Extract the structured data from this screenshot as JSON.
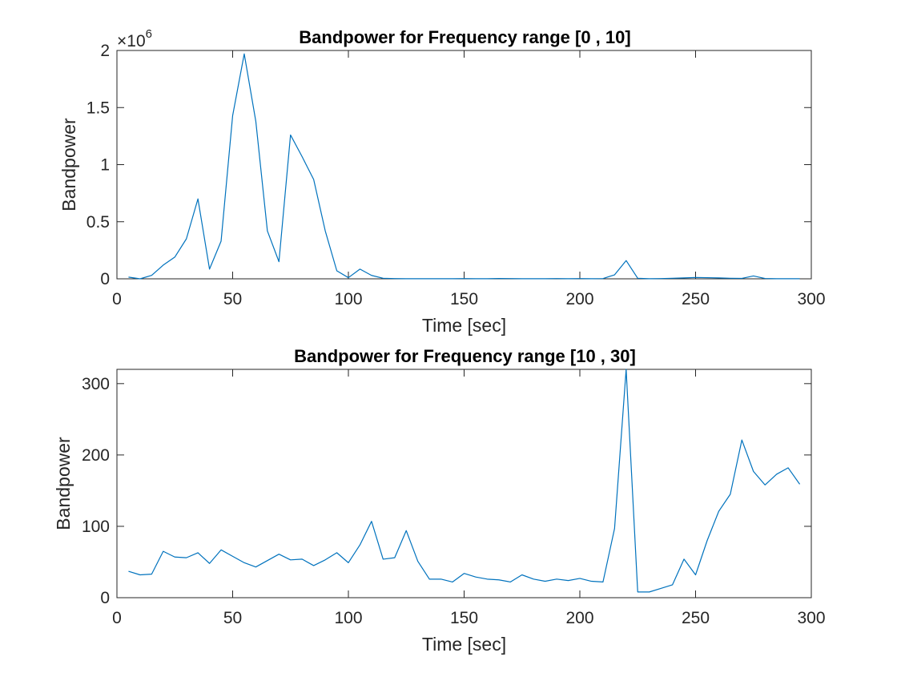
{
  "figure": {
    "background": "#ffffff",
    "line_color": "#0072BD",
    "axis_color": "#262626"
  },
  "chart_data": [
    {
      "type": "line",
      "title": "Bandpower for Frequency range [0 , 10]",
      "xlabel": "Time [sec]",
      "ylabel": "Bandpower",
      "exponent_label": "×10",
      "exponent_power": "6",
      "xlim": [
        0,
        300
      ],
      "ylim": [
        0,
        2000000
      ],
      "xticks": [
        0,
        50,
        100,
        150,
        200,
        250,
        300
      ],
      "xtick_labels": [
        "0",
        "50",
        "100",
        "150",
        "200",
        "250",
        "300"
      ],
      "yticks": [
        0,
        500000,
        1000000,
        1500000,
        2000000
      ],
      "ytick_labels": [
        "0",
        "0.5",
        "1",
        "1.5",
        "2"
      ],
      "grid": false,
      "x": [
        5,
        10,
        15,
        20,
        25,
        30,
        35,
        40,
        45,
        50,
        55,
        60,
        65,
        70,
        75,
        80,
        85,
        90,
        95,
        100,
        105,
        110,
        115,
        120,
        125,
        130,
        135,
        140,
        145,
        150,
        155,
        160,
        165,
        170,
        175,
        180,
        185,
        190,
        195,
        200,
        205,
        210,
        215,
        220,
        225,
        230,
        235,
        240,
        245,
        250,
        255,
        260,
        265,
        270,
        275,
        280,
        285,
        290,
        295
      ],
      "y": [
        15000,
        0,
        30000,
        120000,
        190000,
        350000,
        700000,
        85000,
        330000,
        1430000,
        1970000,
        1380000,
        420000,
        150000,
        1260000,
        1070000,
        870000,
        420000,
        70000,
        10000,
        85000,
        30000,
        5000,
        2000,
        1000,
        1000,
        1000,
        1000,
        1000,
        2000,
        1000,
        1000,
        3000,
        2000,
        1000,
        1000,
        1000,
        2000,
        1000,
        2000,
        1000,
        2000,
        35000,
        160000,
        5000,
        1000,
        2000,
        5000,
        8000,
        12000,
        10000,
        8000,
        5000,
        4000,
        25000,
        3000,
        1000,
        1000,
        1000
      ]
    },
    {
      "type": "line",
      "title": "Bandpower for Frequency range [10 , 30]",
      "xlabel": "Time [sec]",
      "ylabel": "Bandpower",
      "xlim": [
        0,
        300
      ],
      "ylim": [
        0,
        320
      ],
      "xticks": [
        0,
        50,
        100,
        150,
        200,
        250,
        300
      ],
      "xtick_labels": [
        "0",
        "50",
        "100",
        "150",
        "200",
        "250",
        "300"
      ],
      "yticks": [
        0,
        100,
        200,
        300
      ],
      "ytick_labels": [
        "0",
        "100",
        "200",
        "300"
      ],
      "grid": false,
      "x": [
        5,
        10,
        15,
        20,
        25,
        30,
        35,
        40,
        45,
        50,
        55,
        60,
        65,
        70,
        75,
        80,
        85,
        90,
        95,
        100,
        105,
        110,
        115,
        120,
        125,
        130,
        135,
        140,
        145,
        150,
        155,
        160,
        165,
        170,
        175,
        180,
        185,
        190,
        195,
        200,
        205,
        210,
        215,
        220,
        225,
        230,
        235,
        240,
        245,
        250,
        255,
        260,
        265,
        270,
        275,
        280,
        285,
        290,
        295
      ],
      "y": [
        37,
        32,
        33,
        65,
        57,
        56,
        63,
        48,
        67,
        58,
        49,
        43,
        52,
        61,
        53,
        54,
        45,
        53,
        63,
        49,
        74,
        107,
        54,
        56,
        94,
        51,
        26,
        26,
        22,
        34,
        29,
        26,
        25,
        22,
        32,
        26,
        23,
        26,
        24,
        27,
        23,
        22,
        97,
        320,
        8,
        8,
        13,
        18,
        54,
        32,
        80,
        121,
        145,
        221,
        177,
        158,
        173,
        182,
        159
      ]
    }
  ]
}
